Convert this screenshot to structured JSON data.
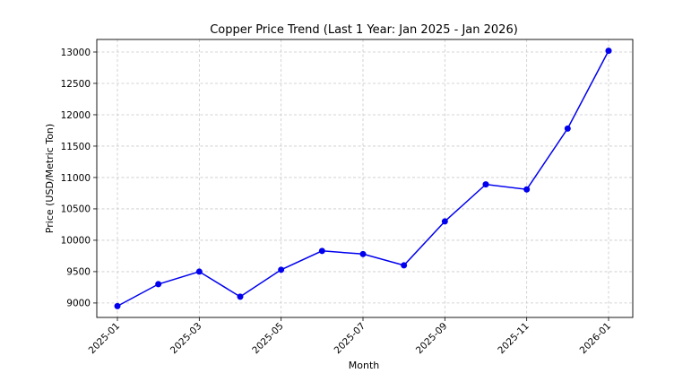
{
  "chart_data": {
    "type": "line",
    "title": "Copper Price Trend (Last 1 Year: Jan 2025 - Jan 2026)",
    "xlabel": "Month",
    "ylabel": "Price (USD/Metric Ton)",
    "x": [
      "2025-01",
      "2025-02",
      "2025-03",
      "2025-04",
      "2025-05",
      "2025-06",
      "2025-07",
      "2025-08",
      "2025-09",
      "2025-10",
      "2025-11",
      "2025-12",
      "2026-01"
    ],
    "x_tick_labels": [
      "2025-01",
      "2025-03",
      "2025-05",
      "2025-07",
      "2025-09",
      "2025-11",
      "2026-01"
    ],
    "y_ticks": [
      9000,
      9500,
      10000,
      10500,
      11000,
      11500,
      12000,
      12500,
      13000
    ],
    "ylim": [
      8770,
      13200
    ],
    "grid": true,
    "series": [
      {
        "values": [
          8950,
          9300,
          9500,
          9100,
          9530,
          9830,
          9780,
          9600,
          10300,
          10890,
          10810,
          11780,
          13020
        ],
        "color": "#0000ee",
        "marker": "circle"
      }
    ]
  }
}
